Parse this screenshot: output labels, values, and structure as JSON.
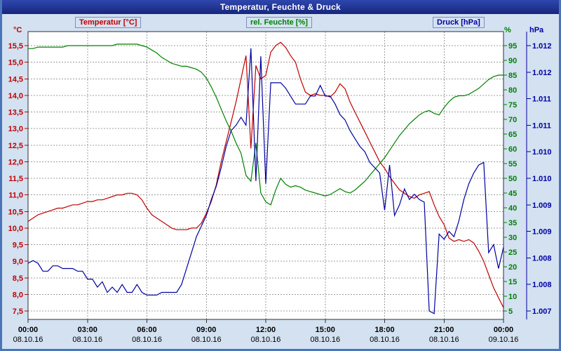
{
  "window": {
    "title": "Temperatur, Feuchte & Druck"
  },
  "colors": {
    "titlebar": "#17267d",
    "window_border": "#4a76b8",
    "content_background": "#d3e1f1",
    "plot_background": "#ffffff",
    "grid": "#9c9c9c",
    "frame": "#303030",
    "temperature": "#c00000",
    "humidity": "#008000",
    "pressure": "#0000a0",
    "x_label": "#000000"
  },
  "chart_data": {
    "type": "line",
    "title": "Temperatur, Feuchte & Druck",
    "grid": "dashed",
    "x_start": 0,
    "x_step": 0.25,
    "x_range": [
      0,
      24
    ],
    "x_axis": {
      "ticks": [
        {
          "time": "00:00",
          "date": "08.10.16"
        },
        {
          "time": "03:00",
          "date": "08.10.16"
        },
        {
          "time": "06:00",
          "date": "08.10.16"
        },
        {
          "time": "09:00",
          "date": "08.10.16"
        },
        {
          "time": "12:00",
          "date": "08.10.16"
        },
        {
          "time": "15:00",
          "date": "08.10.16"
        },
        {
          "time": "18:00",
          "date": "08.10.16"
        },
        {
          "time": "21:00",
          "date": "08.10.16"
        },
        {
          "time": "00:00",
          "date": "09.10.16"
        }
      ]
    },
    "y_axes": [
      {
        "unit": "°C",
        "side": "left",
        "color": "#c00000",
        "min": 7.5,
        "max": 15.5,
        "tick_labels": [
          "15,5",
          "15,0",
          "14,5",
          "14,0",
          "13,5",
          "13,0",
          "12,5",
          "12,0",
          "11,5",
          "11,0",
          "10,5",
          "10,0",
          "9,5",
          "9,0",
          "8,5",
          "8,0",
          "7,5"
        ]
      },
      {
        "unit": "%",
        "side": "right",
        "color": "#008000",
        "min": 5,
        "max": 95,
        "tick_labels": [
          "95",
          "90",
          "85",
          "80",
          "75",
          "70",
          "65",
          "60",
          "55",
          "50",
          "45",
          "40",
          "35",
          "30",
          "25",
          "20",
          "15",
          "10",
          "5"
        ]
      },
      {
        "unit": "hPa",
        "side": "far-right",
        "color": "#0000a0",
        "min": 1007.5,
        "max": 1012.5,
        "tick_labels": [
          "1.012",
          "1.012",
          "1.011",
          "1.011",
          "1.010",
          "1.010",
          "1.009",
          "1.009",
          "1.008",
          "1.008",
          "1.007"
        ]
      }
    ],
    "series": [
      {
        "key": "temperatur",
        "name": "Temperatur [°C]",
        "color": "#c00000",
        "axis_min": 7.5,
        "axis_max": 15.5,
        "values": [
          10.2,
          10.3,
          10.4,
          10.45,
          10.5,
          10.55,
          10.6,
          10.6,
          10.65,
          10.7,
          10.7,
          10.75,
          10.8,
          10.8,
          10.85,
          10.85,
          10.9,
          10.95,
          11.0,
          11.0,
          11.05,
          11.05,
          11.0,
          10.85,
          10.6,
          10.4,
          10.3,
          10.2,
          10.1,
          10.0,
          9.95,
          9.95,
          9.95,
          10.0,
          10.0,
          10.15,
          10.45,
          10.8,
          11.3,
          12.0,
          12.6,
          13.2,
          13.8,
          14.5,
          15.2,
          12.4,
          14.9,
          14.5,
          14.6,
          15.3,
          15.5,
          15.6,
          15.45,
          15.2,
          15.0,
          14.5,
          14.1,
          14.0,
          14.05,
          14.0,
          14.0,
          13.95,
          14.1,
          14.35,
          14.2,
          13.8,
          13.5,
          13.2,
          12.9,
          12.6,
          12.3,
          12.0,
          11.8,
          11.55,
          11.35,
          11.15,
          11.05,
          10.95,
          10.9,
          11.0,
          11.05,
          11.1,
          10.7,
          10.35,
          10.1,
          9.7,
          9.6,
          9.65,
          9.6,
          9.65,
          9.55,
          9.3,
          9.0,
          8.6,
          8.2,
          7.9,
          7.6
        ]
      },
      {
        "key": "feuchte",
        "name": "rel. Feuchte [%]",
        "color": "#008000",
        "axis_min": 5,
        "axis_max": 95,
        "values": [
          94,
          94,
          94.5,
          94.5,
          94.5,
          94.5,
          94.5,
          94.5,
          95,
          95,
          95,
          95,
          95,
          95,
          95,
          95,
          95,
          95,
          95.5,
          95.5,
          95.5,
          95.5,
          95.5,
          95,
          94.5,
          93.5,
          92.5,
          91,
          90,
          89,
          88.5,
          88,
          88,
          87.5,
          87,
          86,
          84,
          81,
          77.5,
          73.5,
          69.5,
          66,
          62,
          58.5,
          51,
          49,
          62,
          45,
          42,
          41,
          46,
          50,
          48,
          47,
          47.5,
          47,
          46,
          45.5,
          45,
          44.5,
          44,
          44.5,
          45.5,
          46.5,
          45.5,
          45,
          46,
          47.5,
          49,
          51,
          53,
          55,
          57,
          59.5,
          62,
          64.5,
          66.5,
          68.5,
          70,
          71.5,
          72.5,
          73,
          72,
          71.5,
          74,
          76,
          77.5,
          78,
          78,
          78.5,
          79.5,
          80.5,
          82,
          83.5,
          84.5,
          85,
          85
        ]
      },
      {
        "key": "druck",
        "name": "Druck [hPa]",
        "color": "#0000a0",
        "axis_min": 1007.5,
        "axis_max": 1012.5,
        "values": [
          1008.4,
          1008.45,
          1008.4,
          1008.25,
          1008.25,
          1008.35,
          1008.35,
          1008.3,
          1008.3,
          1008.3,
          1008.25,
          1008.25,
          1008.1,
          1008.1,
          1007.95,
          1008.05,
          1007.85,
          1007.95,
          1007.85,
          1008.0,
          1007.85,
          1007.85,
          1008.0,
          1007.85,
          1007.8,
          1007.8,
          1007.8,
          1007.85,
          1007.85,
          1007.85,
          1007.85,
          1008.0,
          1008.3,
          1008.6,
          1008.9,
          1009.1,
          1009.3,
          1009.6,
          1009.85,
          1010.2,
          1010.6,
          1010.9,
          1011.0,
          1011.15,
          1011.0,
          1012.45,
          1009.95,
          1012.3,
          1009.9,
          1011.8,
          1011.8,
          1011.8,
          1011.7,
          1011.55,
          1011.4,
          1011.4,
          1011.4,
          1011.55,
          1011.55,
          1011.75,
          1011.55,
          1011.55,
          1011.4,
          1011.2,
          1011.1,
          1010.9,
          1010.75,
          1010.6,
          1010.5,
          1010.3,
          1010.2,
          1010.1,
          1009.4,
          1010.25,
          1009.3,
          1009.5,
          1009.8,
          1009.6,
          1009.7,
          1009.6,
          1009.55,
          1007.5,
          1007.45,
          1008.95,
          1008.85,
          1009.0,
          1008.9,
          1009.2,
          1009.6,
          1009.9,
          1010.1,
          1010.25,
          1010.3,
          1008.6,
          1008.75,
          1008.3,
          1008.7
        ]
      }
    ]
  }
}
